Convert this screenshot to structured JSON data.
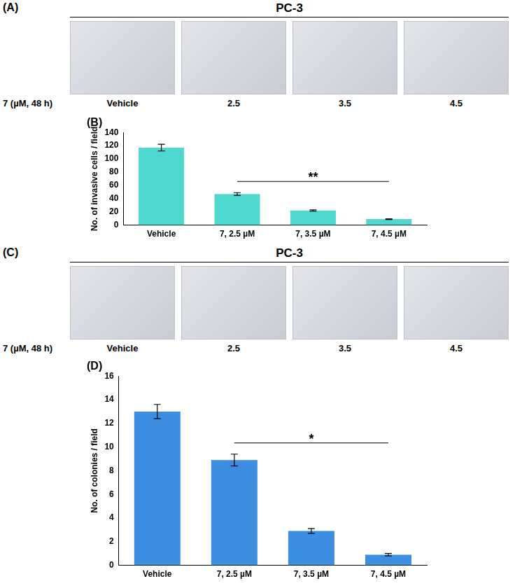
{
  "image_panels": [
    {
      "label": "(A)",
      "header": "PC-3",
      "row_label": "7 (µM, 48 h)",
      "captions": [
        "Vehicle",
        "2.5",
        "3.5",
        "4.5"
      ]
    },
    {
      "label": "(C)",
      "header": "PC-3",
      "row_label": "7 (µM, 48 h)",
      "captions": [
        "Vehicle",
        "2.5",
        "3.5",
        "4.5"
      ]
    }
  ],
  "chart_data": [
    {
      "type": "bar",
      "title": "(B)",
      "y_label": "No. of invasive cells / field",
      "categories": [
        "Vehicle",
        "7, 2.5 µM",
        "7, 3.5 µM",
        "7, 4.5 µM"
      ],
      "values": [
        117,
        47,
        22,
        9
      ],
      "errors": [
        5,
        2,
        1,
        0.5
      ],
      "color": "#4fd8cf",
      "ylim": [
        0,
        140
      ],
      "yticks": [
        0,
        20,
        40,
        60,
        80,
        100,
        120,
        140
      ],
      "grid": false,
      "annotations": [
        {
          "text": "**",
          "from": "7, 2.5 µM",
          "to": "7, 4.5 µM"
        }
      ]
    },
    {
      "type": "bar",
      "title": "(D)",
      "y_label": "No. of colonies / field",
      "categories": [
        "Vehicle",
        "7, 2.5 µM",
        "7, 3.5 µM",
        "7, 4.5 µM"
      ],
      "values": [
        13,
        8.9,
        2.9,
        0.9
      ],
      "errors": [
        0.6,
        0.5,
        0.2,
        0.1
      ],
      "color": "#3d8ee0",
      "ylim": [
        0,
        16
      ],
      "yticks": [
        0,
        2,
        4,
        6,
        8,
        10,
        12,
        14,
        16
      ],
      "grid": false,
      "annotations": [
        {
          "text": "*",
          "from": "7, 2.5 µM",
          "to": "7, 4.5 µM"
        }
      ]
    }
  ]
}
